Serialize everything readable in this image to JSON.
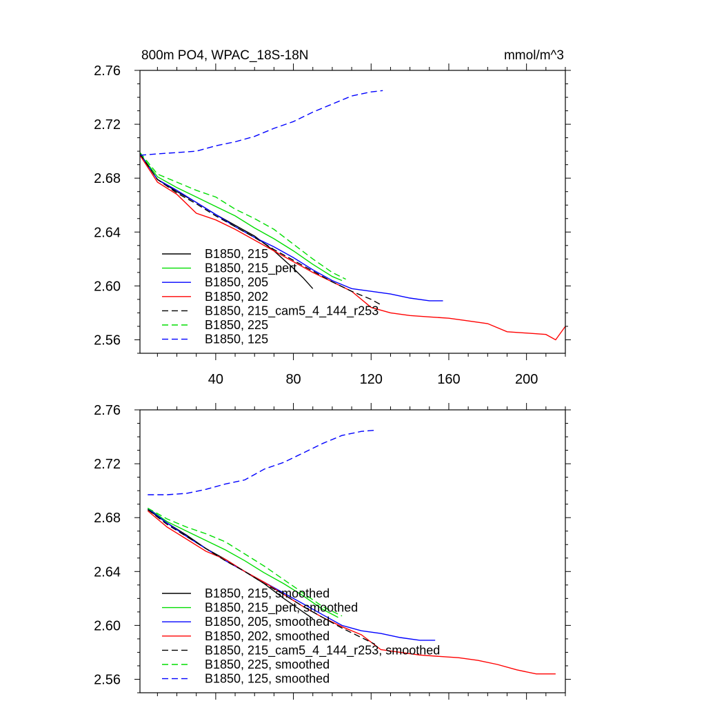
{
  "chart_data": [
    {
      "type": "line",
      "title": "800m PO4, WPAC_18S-18N",
      "units": "mmol/m^3",
      "xlim": [
        1,
        220
      ],
      "ylim": [
        2.55,
        2.76
      ],
      "x_ticks": [
        40,
        80,
        120,
        160,
        200
      ],
      "y_ticks": [
        "2.56",
        "2.60",
        "2.64",
        "2.68",
        "2.72",
        "2.76"
      ],
      "series": [
        {
          "name": "B1850, 215",
          "color": "#000000",
          "dashed": false,
          "x": [
            1,
            10,
            20,
            30,
            40,
            50,
            60,
            70,
            80,
            85,
            90
          ],
          "y": [
            2.698,
            2.679,
            2.67,
            2.662,
            2.653,
            2.645,
            2.637,
            2.626,
            2.613,
            2.606,
            2.598
          ]
        },
        {
          "name": "B1850, 215_pert",
          "color": "#00dd00",
          "dashed": false,
          "x": [
            1,
            10,
            20,
            30,
            40,
            50,
            60,
            70,
            80,
            90,
            100,
            105
          ],
          "y": [
            2.698,
            2.681,
            2.673,
            2.666,
            2.659,
            2.652,
            2.643,
            2.635,
            2.626,
            2.616,
            2.607,
            2.604
          ]
        },
        {
          "name": "B1850, 205",
          "color": "#0000ff",
          "dashed": false,
          "x": [
            1,
            10,
            20,
            30,
            40,
            50,
            60,
            70,
            80,
            90,
            100,
            110,
            120,
            130,
            140,
            150,
            157
          ],
          "y": [
            2.698,
            2.679,
            2.671,
            2.662,
            2.653,
            2.644,
            2.636,
            2.629,
            2.621,
            2.612,
            2.604,
            2.598,
            2.596,
            2.594,
            2.591,
            2.589,
            2.589
          ]
        },
        {
          "name": "B1850, 202",
          "color": "#ff0000",
          "dashed": false,
          "x": [
            1,
            10,
            20,
            30,
            40,
            50,
            60,
            70,
            80,
            90,
            100,
            110,
            120,
            130,
            140,
            150,
            160,
            170,
            180,
            190,
            200,
            210,
            215,
            220
          ],
          "y": [
            2.697,
            2.677,
            2.668,
            2.654,
            2.649,
            2.642,
            2.634,
            2.626,
            2.618,
            2.61,
            2.603,
            2.596,
            2.584,
            2.58,
            2.578,
            2.577,
            2.576,
            2.574,
            2.572,
            2.566,
            2.565,
            2.564,
            2.56,
            2.57
          ]
        },
        {
          "name": "B1850, 215_cam5_4_144_r253",
          "color": "#000000",
          "dashed": true,
          "x": [
            1,
            10,
            20,
            30,
            40,
            50,
            60,
            70,
            80,
            90,
            100,
            110,
            120,
            125
          ],
          "y": [
            2.698,
            2.679,
            2.669,
            2.661,
            2.652,
            2.644,
            2.636,
            2.627,
            2.619,
            2.611,
            2.603,
            2.596,
            2.59,
            2.586
          ]
        },
        {
          "name": "B1850, 225",
          "color": "#00dd00",
          "dashed": true,
          "x": [
            1,
            10,
            20,
            30,
            40,
            50,
            60,
            70,
            80,
            90,
            100,
            107
          ],
          "y": [
            2.699,
            2.683,
            2.677,
            2.671,
            2.666,
            2.657,
            2.65,
            2.642,
            2.631,
            2.62,
            2.61,
            2.605
          ]
        },
        {
          "name": "B1850, 125",
          "color": "#0000ff",
          "dashed": true,
          "x": [
            1,
            10,
            20,
            30,
            40,
            50,
            60,
            70,
            80,
            90,
            100,
            110,
            120,
            126
          ],
          "y": [
            2.697,
            2.698,
            2.699,
            2.7,
            2.704,
            2.707,
            2.711,
            2.717,
            2.722,
            2.729,
            2.735,
            2.741,
            2.744,
            2.745
          ]
        }
      ]
    },
    {
      "type": "line",
      "title": "",
      "xlim": [
        1,
        220
      ],
      "ylim": [
        2.55,
        2.76
      ],
      "y_ticks": [
        "2.56",
        "2.60",
        "2.64",
        "2.68",
        "2.72",
        "2.76"
      ],
      "series": [
        {
          "name": "B1850, 215, smoothed",
          "color": "#000000",
          "dashed": false,
          "x": [
            5,
            15,
            25,
            35,
            45,
            55,
            65,
            75,
            85,
            90
          ],
          "y": [
            2.686,
            2.676,
            2.667,
            2.657,
            2.649,
            2.64,
            2.631,
            2.62,
            2.61,
            2.605
          ]
        },
        {
          "name": "B1850, 215_pert, smoothed",
          "color": "#00dd00",
          "dashed": false,
          "x": [
            5,
            15,
            25,
            35,
            45,
            55,
            65,
            75,
            85,
            95,
            103
          ],
          "y": [
            2.687,
            2.677,
            2.67,
            2.663,
            2.656,
            2.648,
            2.639,
            2.631,
            2.622,
            2.612,
            2.606
          ]
        },
        {
          "name": "B1850, 205, smoothed",
          "color": "#0000ff",
          "dashed": false,
          "x": [
            5,
            15,
            25,
            35,
            45,
            55,
            65,
            75,
            85,
            95,
            105,
            115,
            125,
            135,
            145,
            153
          ],
          "y": [
            2.687,
            2.676,
            2.666,
            2.657,
            2.648,
            2.64,
            2.632,
            2.624,
            2.616,
            2.608,
            2.6,
            2.596,
            2.594,
            2.591,
            2.589,
            2.589
          ]
        },
        {
          "name": "B1850, 202, smoothed",
          "color": "#ff0000",
          "dashed": false,
          "x": [
            5,
            15,
            25,
            35,
            45,
            55,
            65,
            75,
            85,
            95,
            105,
            115,
            125,
            135,
            145,
            155,
            165,
            175,
            185,
            195,
            205,
            215
          ],
          "y": [
            2.685,
            2.673,
            2.664,
            2.655,
            2.649,
            2.64,
            2.632,
            2.623,
            2.614,
            2.606,
            2.599,
            2.593,
            2.582,
            2.58,
            2.578,
            2.577,
            2.576,
            2.574,
            2.571,
            2.567,
            2.564,
            2.564
          ]
        },
        {
          "name": "B1850, 215_cam5_4_144_r253, smoothed",
          "color": "#000000",
          "dashed": true,
          "x": [
            5,
            15,
            25,
            35,
            45,
            55,
            65,
            75,
            85,
            95,
            105,
            115,
            122
          ],
          "y": [
            2.686,
            2.675,
            2.666,
            2.657,
            2.648,
            2.64,
            2.631,
            2.623,
            2.614,
            2.606,
            2.598,
            2.591,
            2.586
          ]
        },
        {
          "name": "B1850, 225, smoothed",
          "color": "#00dd00",
          "dashed": true,
          "x": [
            5,
            15,
            25,
            35,
            45,
            55,
            65,
            75,
            85,
            95,
            105
          ],
          "y": [
            2.687,
            2.679,
            2.673,
            2.668,
            2.662,
            2.653,
            2.644,
            2.634,
            2.624,
            2.614,
            2.607
          ]
        },
        {
          "name": "B1850, 125, smoothed",
          "color": "#0000ff",
          "dashed": true,
          "x": [
            5,
            15,
            25,
            35,
            45,
            55,
            65,
            75,
            85,
            95,
            105,
            115,
            123
          ],
          "y": [
            2.697,
            2.697,
            2.698,
            2.701,
            2.705,
            2.708,
            2.716,
            2.721,
            2.728,
            2.735,
            2.741,
            2.744,
            2.745
          ]
        }
      ]
    }
  ]
}
